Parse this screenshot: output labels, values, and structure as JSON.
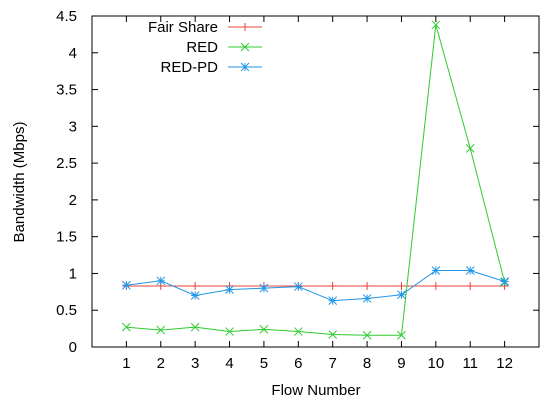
{
  "chart_data": {
    "type": "line",
    "title": "",
    "xlabel": "Flow Number",
    "ylabel": "Bandwidth (Mbps)",
    "xlim": [
      0,
      13
    ],
    "ylim": [
      0,
      4.5
    ],
    "x": [
      1,
      2,
      3,
      4,
      5,
      6,
      7,
      8,
      9,
      10,
      11,
      12
    ],
    "xticks": [
      "1",
      "2",
      "3",
      "4",
      "5",
      "6",
      "7",
      "8",
      "9",
      "10",
      "11",
      "12"
    ],
    "yticks": [
      "0",
      "0.5",
      "1",
      "1.5",
      "2",
      "2.5",
      "3",
      "3.5",
      "4",
      "4.5"
    ],
    "grid": false,
    "legend_position": "top-left",
    "series": [
      {
        "name": "Fair Share",
        "color": "#e8443a",
        "marker": "plus",
        "values": [
          0.83,
          0.83,
          0.83,
          0.83,
          0.83,
          0.83,
          0.83,
          0.83,
          0.83,
          0.83,
          0.83,
          0.83
        ]
      },
      {
        "name": "RED",
        "color": "#2fcb2f",
        "marker": "cross",
        "values": [
          0.27,
          0.23,
          0.27,
          0.21,
          0.24,
          0.21,
          0.17,
          0.16,
          0.16,
          4.38,
          2.7,
          0.88
        ]
      },
      {
        "name": "RED-PD",
        "color": "#2196e8",
        "marker": "star",
        "values": [
          0.84,
          0.9,
          0.7,
          0.78,
          0.8,
          0.82,
          0.63,
          0.66,
          0.71,
          1.04,
          1.04,
          0.89
        ]
      }
    ]
  }
}
